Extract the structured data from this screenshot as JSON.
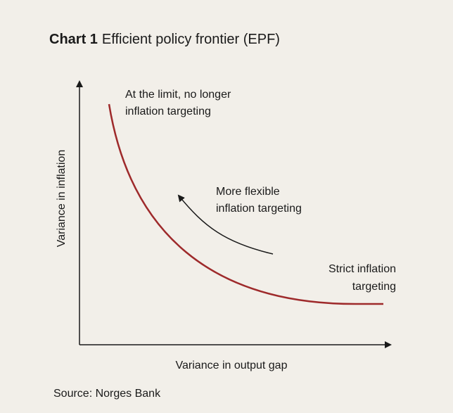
{
  "title": {
    "label": "Chart 1",
    "text": "Efficient policy frontier (EPF)"
  },
  "y_axis_label": "Variance in inflation",
  "x_axis_label": "Variance in output gap",
  "annotations": [
    {
      "lines": [
        "At the limit, no longer",
        "inflation targeting"
      ]
    },
    {
      "lines": [
        "More flexible",
        "inflation targeting"
      ]
    },
    {
      "lines": [
        "Strict inflation",
        "targeting"
      ]
    }
  ],
  "source": "Source: Norges Bank"
}
